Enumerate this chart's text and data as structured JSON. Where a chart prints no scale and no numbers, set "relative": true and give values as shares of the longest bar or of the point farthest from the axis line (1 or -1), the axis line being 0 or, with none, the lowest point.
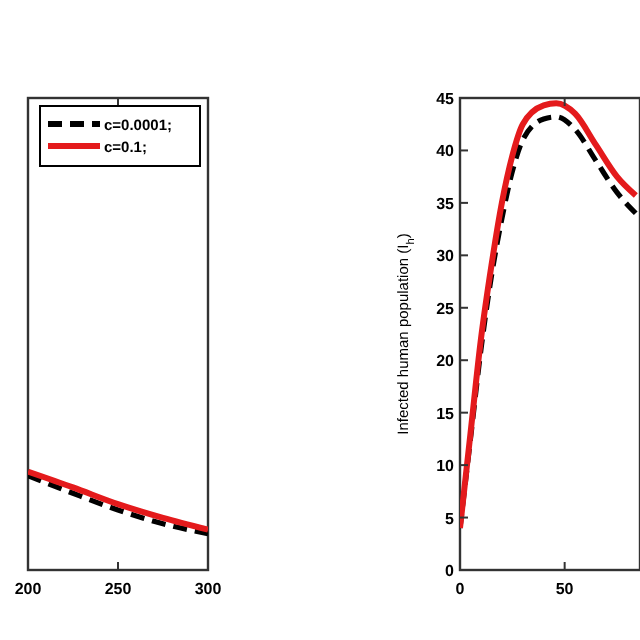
{
  "chart_data": [
    {
      "type": "line",
      "relative": true,
      "x": [
        200,
        225,
        250,
        275,
        300
      ],
      "xlim": [
        200,
        300
      ],
      "xticks": [
        {
          "value": 200,
          "label": "200"
        },
        250,
        300
      ],
      "legend": "top right",
      "tick_labels": "x",
      "series": [
        {
          "name": "c=0.0001;",
          "color": "#000000",
          "line_style": "dashed",
          "values": [
            0.96,
            0.78,
            0.61,
            0.47,
            0.37
          ]
        },
        {
          "name": "c=0.1;",
          "color": "#e41a1c",
          "line_style": "solid",
          "values": [
            1,
            0.84,
            0.67,
            0.53,
            0.41
          ]
        }
      ]
    },
    {
      "type": "line",
      "ylabel": "Infected human population (I$_{h}$)",
      "x": [
        0,
        5,
        10,
        15,
        20,
        25,
        30,
        40,
        46,
        55,
        65,
        75,
        84
      ],
      "xlim": [
        0,
        86
      ],
      "xticks": [
        0,
        50
      ],
      "ylim": [
        0,
        45
      ],
      "yticks": [
        0,
        5,
        10,
        15,
        20,
        25,
        30,
        35,
        40,
        45
      ],
      "series": [
        {
          "color": "#000000",
          "line_style": "dashed",
          "values": [
            4,
            12.5,
            21,
            28,
            33.5,
            38,
            41,
            43,
            43.2,
            42,
            39,
            36,
            34
          ]
        },
        {
          "color": "#e41a1c",
          "line_style": "solid",
          "values": [
            4,
            13,
            22,
            29,
            35,
            39.5,
            42.5,
            44.3,
            44.5,
            43.5,
            40.5,
            37.5,
            35.7
          ]
        }
      ]
    }
  ]
}
